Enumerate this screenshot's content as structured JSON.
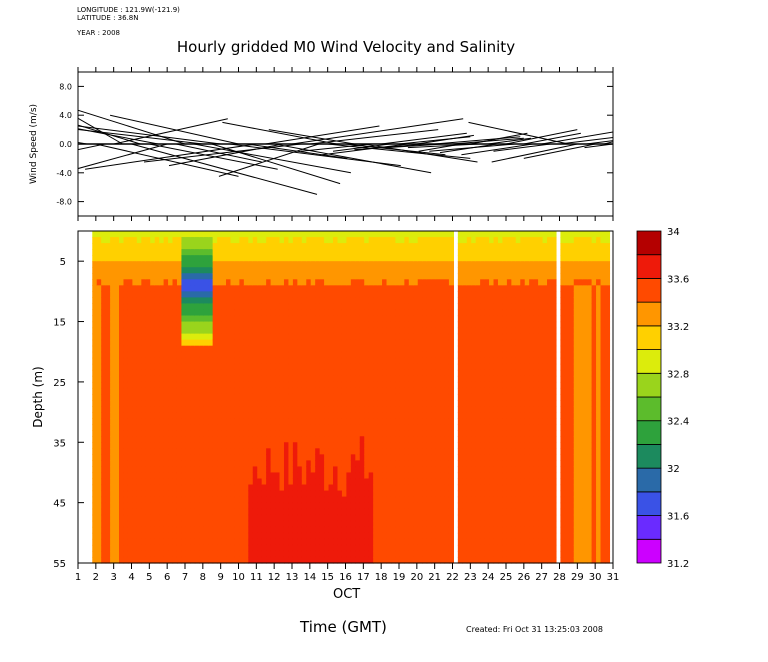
{
  "header": {
    "longitude": "LONGITUDE : 121.9W(-121.9)",
    "latitude": "LATITUDE : 36.8N",
    "year": "YEAR : 2008"
  },
  "title": "Hourly gridded M0 Wind Velocity and Salinity",
  "xlabel": "Time (GMT)",
  "month_label": "OCT",
  "created": "Created: Fri Oct 31 13:25:03 2008",
  "chart_data": [
    {
      "type": "vector",
      "name": "wind",
      "ylabel": "Wind Speed (m/s)",
      "ylim": [
        -10,
        10
      ],
      "yticks": [
        -8.0,
        -4.0,
        0.0,
        4.0,
        8.0
      ],
      "ytick_labels": [
        "-8.0",
        "-4.0",
        "0.0",
        "4.0",
        "8.0"
      ],
      "xlim": [
        1,
        31
      ],
      "x": [
        1.0,
        1.5,
        2.0,
        2.5,
        3.0,
        3.5,
        4.0,
        4.5,
        5.0,
        5.5,
        6.0,
        6.5,
        7.0,
        7.5,
        8.0,
        8.5,
        9.0,
        9.5,
        10.0,
        10.5,
        11.0,
        11.5,
        12.0,
        12.5,
        13.0,
        13.5,
        14.0,
        14.5,
        15.0,
        15.5,
        16.0,
        16.5,
        17.0,
        17.5,
        18.0,
        18.5,
        19.0,
        19.5,
        20.0,
        20.5,
        21.0,
        21.5,
        22.0,
        22.5,
        23.0,
        23.5,
        24.0,
        24.5,
        25.0,
        25.5,
        26.0,
        26.5,
        27.0,
        27.5,
        28.0,
        28.5,
        29.0,
        29.5,
        30.0,
        30.5,
        31.0
      ],
      "u": [
        -3.0,
        -4.5,
        5.0,
        -6.0,
        4.0,
        -3.5,
        6.5,
        -5.0,
        4.5,
        -6.0,
        -5.5,
        3.0,
        -4.0,
        5.5,
        -6.5,
        4.5,
        -5.0,
        6.0,
        -4.5,
        3.5,
        -6.0,
        4.0,
        5.5,
        -4.0,
        6.0,
        -5.5,
        4.5,
        -3.5,
        5.0,
        -4.0,
        3.5,
        -3.0,
        4.0,
        -2.5,
        3.0,
        -2.0,
        2.5,
        -3.0,
        2.0,
        -2.5,
        3.0,
        -2.0,
        2.5,
        -1.5,
        2.0,
        -2.5,
        1.5,
        -2.0,
        2.5,
        -3.0,
        2.0,
        -2.5,
        3.0,
        -2.0,
        2.5,
        -3.5,
        -3.0,
        2.0,
        -2.5,
        1.5,
        -1.0
      ],
      "v": [
        -2.0,
        3.0,
        -4.5,
        -5.0,
        3.5,
        8.0,
        -7.0,
        6.0,
        -3.5,
        4.5,
        -6.0,
        -2.5,
        5.0,
        -4.0,
        3.0,
        -5.5,
        2.5,
        -3.0,
        4.0,
        -2.0,
        -3.5,
        2.5,
        -4.0,
        -3.0,
        3.5,
        -2.5,
        2.0,
        -4.5,
        -2.0,
        3.0,
        -1.5,
        2.0,
        -2.5,
        -1.0,
        1.5,
        -1.0,
        1.0,
        -1.5,
        1.2,
        -0.8,
        1.0,
        -0.5,
        0.8,
        -1.0,
        1.5,
        -0.5,
        0.8,
        -1.2,
        2.0,
        -1.0,
        1.5,
        -1.5,
        2.0,
        -1.0,
        1.2,
        3.0,
        -2.5,
        1.0,
        -2.0,
        1.5,
        -0.5
      ]
    },
    {
      "type": "heatmap",
      "name": "salinity",
      "ylabel": "Depth (m)",
      "ylim": [
        55,
        0
      ],
      "yticks": [
        5,
        15,
        25,
        35,
        45,
        55
      ],
      "xlim": [
        1,
        31
      ],
      "xticks": [
        1,
        2,
        3,
        4,
        5,
        6,
        7,
        8,
        9,
        10,
        11,
        12,
        13,
        14,
        15,
        16,
        17,
        18,
        19,
        20,
        21,
        22,
        23,
        24,
        25,
        26,
        27,
        28,
        29,
        30,
        31
      ],
      "data_start": 1.8,
      "data_end": 30.6,
      "gaps": [
        22.0,
        27.8
      ],
      "colorbar": {
        "ticks": [
          31.2,
          31.6,
          32.0,
          32.4,
          32.8,
          33.2,
          33.6,
          34.0
        ],
        "tick_labels": [
          "31.2",
          "31.6",
          "32",
          "32.4",
          "32.8",
          "33.2",
          "33.6",
          "34"
        ],
        "levels": [
          31.2,
          31.4,
          31.6,
          31.8,
          32.0,
          32.2,
          32.4,
          32.6,
          32.8,
          33.0,
          33.2,
          33.4,
          33.6,
          33.8,
          34.0
        ],
        "colors": [
          "#cc00ff",
          "#6a2bff",
          "#3a52e6",
          "#2a6aa8",
          "#1c8a5e",
          "#2ea23c",
          "#5cbc2c",
          "#9ad41c",
          "#dcec0c",
          "#ffd000",
          "#ff9600",
          "#ff4a00",
          "#ee1a0a",
          "#b40000"
        ]
      },
      "surface_layer": {
        "depth_range_m": [
          0,
          9
        ],
        "salinity_top": 32.9,
        "salinity_bottom": 33.4
      },
      "fresh_lens": {
        "day_range": [
          6.9,
          8.6
        ],
        "depth_range_m": [
          0,
          19
        ],
        "min_salinity": 31.7,
        "min_depth_m": 9
      },
      "subsurface_salinity": 33.5,
      "high_salinity_patch": {
        "day_range": [
          10.5,
          17.6
        ],
        "depth_range_m": [
          44,
          55
        ],
        "salinity": 33.7
      },
      "low_salinity_edge_days": [
        [
          1.8,
          3.5
        ],
        [
          28.0,
          30.6
        ]
      ],
      "edge_salinity": 33.3
    }
  ]
}
